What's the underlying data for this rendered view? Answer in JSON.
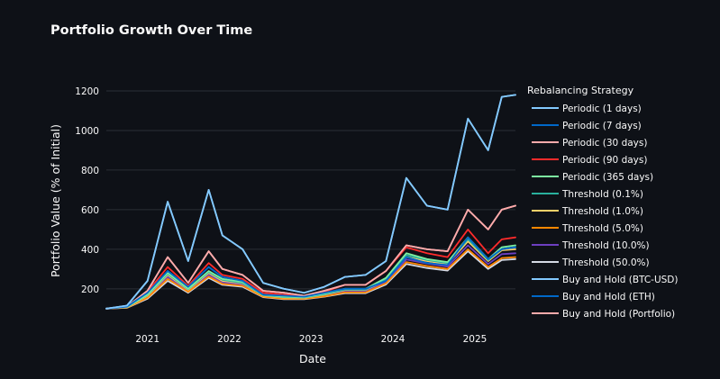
{
  "chart_data": {
    "type": "line",
    "title": "Portfolio Growth Over Time",
    "xlabel": "Date",
    "ylabel": "Portfolio Value (% of Initial)",
    "x_ticks": [
      "2021",
      "2022",
      "2023",
      "2024",
      "2025"
    ],
    "y_ticks": [
      "200",
      "400",
      "600",
      "800",
      "1000",
      "1200"
    ],
    "xlim": [
      "2020-07-01",
      "2025-07-01"
    ],
    "ylim": [
      90,
      1250
    ],
    "grid": "horizontal",
    "legend_title": "Rebalancing Strategy",
    "legend_position": "right",
    "x": [
      "2020-07",
      "2020-10",
      "2021-01",
      "2021-04",
      "2021-07",
      "2021-10",
      "2021-12",
      "2022-03",
      "2022-06",
      "2022-09",
      "2022-12",
      "2023-03",
      "2023-06",
      "2023-09",
      "2023-12",
      "2024-03",
      "2024-06",
      "2024-09",
      "2024-12",
      "2025-03",
      "2025-05",
      "2025-07"
    ],
    "series": [
      {
        "name": "Periodic (1 days)",
        "color": "#83c9ff",
        "values": [
          100,
          115,
          240,
          640,
          340,
          700,
          470,
          400,
          230,
          200,
          180,
          210,
          260,
          270,
          340,
          760,
          620,
          600,
          1060,
          900,
          1170,
          1180
        ]
      },
      {
        "name": "Periodic (7 days)",
        "color": "#0068c9",
        "values": [
          100,
          110,
          180,
          290,
          210,
          310,
          260,
          240,
          170,
          165,
          160,
          180,
          200,
          200,
          240,
          360,
          330,
          320,
          460,
          350,
          400,
          410
        ]
      },
      {
        "name": "Periodic (30 days)",
        "color": "#ffabab",
        "values": [
          100,
          110,
          190,
          360,
          230,
          390,
          300,
          270,
          190,
          180,
          165,
          190,
          220,
          220,
          290,
          420,
          400,
          390,
          600,
          500,
          600,
          620
        ]
      },
      {
        "name": "Periodic (90 days)",
        "color": "#ff2b2b",
        "values": [
          100,
          110,
          185,
          310,
          215,
          330,
          270,
          250,
          180,
          170,
          162,
          185,
          220,
          220,
          290,
          410,
          380,
          360,
          500,
          380,
          450,
          460
        ]
      },
      {
        "name": "Periodic (365 days)",
        "color": "#7defa1",
        "values": [
          100,
          108,
          170,
          280,
          200,
          290,
          250,
          235,
          170,
          160,
          158,
          175,
          200,
          200,
          255,
          380,
          350,
          335,
          460,
          350,
          410,
          420
        ]
      },
      {
        "name": "Threshold (0.1%)",
        "color": "#29b09d",
        "values": [
          100,
          108,
          168,
          275,
          198,
          285,
          245,
          230,
          168,
          158,
          156,
          172,
          196,
          196,
          248,
          370,
          345,
          330,
          450,
          345,
          400,
          410
        ]
      },
      {
        "name": "Threshold (1.0%)",
        "color": "#ffd16a",
        "values": [
          100,
          107,
          165,
          270,
          195,
          280,
          240,
          228,
          166,
          156,
          154,
          170,
          194,
          194,
          244,
          360,
          340,
          325,
          440,
          340,
          395,
          400
        ]
      },
      {
        "name": "Threshold (5.0%)",
        "color": "#ff8700",
        "values": [
          100,
          105,
          155,
          250,
          185,
          262,
          225,
          215,
          160,
          150,
          150,
          162,
          182,
          182,
          228,
          335,
          315,
          300,
          400,
          310,
          355,
          360
        ]
      },
      {
        "name": "Threshold (10.0%)",
        "color": "#6d3fc0",
        "values": [
          100,
          106,
          160,
          260,
          190,
          270,
          232,
          222,
          163,
          153,
          152,
          166,
          188,
          188,
          236,
          348,
          328,
          312,
          420,
          325,
          375,
          380
        ]
      },
      {
        "name": "Threshold (50.0%)",
        "color": "#d5dae5",
        "values": [
          100,
          104,
          150,
          240,
          180,
          255,
          220,
          210,
          158,
          148,
          148,
          160,
          178,
          178,
          222,
          325,
          305,
          292,
          390,
          300,
          345,
          350
        ]
      },
      {
        "name": "Buy and Hold (BTC-USD)",
        "color": "#83c9ff",
        "values": [
          100,
          115,
          240,
          640,
          340,
          700,
          470,
          400,
          230,
          200,
          180,
          210,
          260,
          270,
          340,
          760,
          620,
          600,
          1060,
          900,
          1170,
          1180
        ]
      },
      {
        "name": "Buy and Hold (ETH)",
        "color": "#0068c9",
        "values": [
          100,
          110,
          180,
          290,
          210,
          310,
          260,
          240,
          170,
          165,
          160,
          180,
          200,
          200,
          240,
          360,
          330,
          320,
          460,
          350,
          400,
          410
        ]
      },
      {
        "name": "Buy and Hold (Portfolio)",
        "color": "#ffabab",
        "values": [
          100,
          110,
          190,
          360,
          230,
          390,
          300,
          270,
          190,
          180,
          165,
          190,
          220,
          220,
          290,
          420,
          400,
          390,
          600,
          500,
          600,
          620
        ]
      }
    ]
  }
}
